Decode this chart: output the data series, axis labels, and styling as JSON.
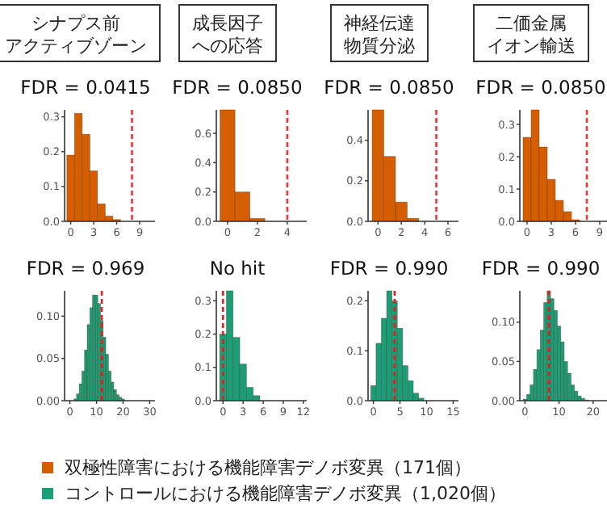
{
  "chart_data": [
    {
      "type": "histogram",
      "title": "シナプス前",
      "subtitle": "アクティブゾーン",
      "annotations": [
        "FDR = 0.0415"
      ],
      "bins": [
        -0.5,
        0.5,
        1.5,
        2.5,
        3.5,
        4.5,
        5.5,
        6.5
      ],
      "series": [
        {
          "color": "#d55e00",
          "values": [
            0.19,
            0.31,
            0.25,
            0.145,
            0.05,
            0.015,
            0.005
          ]
        }
      ],
      "xlim": [
        -0.8,
        11
      ],
      "xticks": [
        0,
        3,
        6,
        9
      ],
      "ylim": [
        0,
        0.32
      ],
      "yticks": [
        {
          "value": 0,
          "label": "0.0"
        },
        {
          "value": 0.1,
          "label": "0.1"
        },
        {
          "value": 0.2,
          "label": "0.2"
        },
        {
          "value": 0.3,
          "label": "0.3"
        }
      ],
      "ref_lines": [
        {
          "axis": "x",
          "value": 8,
          "color": "#ee3333",
          "line_style": "dashed"
        }
      ]
    },
    {
      "type": "histogram",
      "title": "成長因子",
      "subtitle": "への応答",
      "annotations": [
        "FDR = 0.0850"
      ],
      "bins": [
        -0.5,
        0.5,
        1.5,
        2.5
      ],
      "series": [
        {
          "color": "#d55e00",
          "values": [
            0.76,
            0.2,
            0.02
          ]
        }
      ],
      "xlim": [
        -0.75,
        5.3
      ],
      "xticks": [
        0,
        2,
        4
      ],
      "ylim": [
        0,
        0.76
      ],
      "yticks": [
        {
          "value": 0,
          "label": "0.0"
        },
        {
          "value": 0.2,
          "label": "0.2"
        },
        {
          "value": 0.4,
          "label": "0.4"
        },
        {
          "value": 0.6,
          "label": "0.6"
        }
      ],
      "ref_lines": [
        {
          "axis": "x",
          "value": 4,
          "color": "#ee3333",
          "line_style": "dashed"
        }
      ]
    },
    {
      "type": "histogram",
      "title": "神経伝達",
      "subtitle": "物質分泌",
      "annotations": [
        "FDR = 0.0850"
      ],
      "bins": [
        -0.5,
        0.5,
        1.5,
        2.5,
        3.5
      ],
      "series": [
        {
          "color": "#d55e00",
          "values": [
            0.55,
            0.32,
            0.095,
            0.015
          ]
        }
      ],
      "xlim": [
        -0.85,
        6.9
      ],
      "xticks": [
        0,
        2,
        4,
        6
      ],
      "ylim": [
        0,
        0.55
      ],
      "yticks": [
        {
          "value": 0,
          "label": "0.0"
        },
        {
          "value": 0.2,
          "label": "0.2"
        },
        {
          "value": 0.4,
          "label": "0.4"
        }
      ],
      "ref_lines": [
        {
          "axis": "x",
          "value": 5,
          "color": "#ee3333",
          "line_style": "dashed"
        }
      ]
    },
    {
      "type": "histogram",
      "title": "二価金属",
      "subtitle": "イオン輸送",
      "annotations": [
        "FDR = 0.0850"
      ],
      "bins": [
        -0.5,
        0.5,
        1.5,
        2.5,
        3.5,
        4.5,
        5.5,
        6.5
      ],
      "series": [
        {
          "color": "#d55e00",
          "values": [
            0.26,
            0.345,
            0.23,
            0.13,
            0.065,
            0.03,
            0.005
          ]
        }
      ],
      "xlim": [
        -0.9,
        10.3
      ],
      "xticks": [
        0,
        3,
        6,
        9
      ],
      "ylim": [
        0,
        0.345
      ],
      "yticks": [
        {
          "value": 0,
          "label": "0.0"
        },
        {
          "value": 0.1,
          "label": "0.1"
        },
        {
          "value": 0.2,
          "label": "0.2"
        },
        {
          "value": 0.3,
          "label": "0.3"
        }
      ],
      "ref_lines": [
        {
          "axis": "x",
          "value": 7.4,
          "color": "#ee3333",
          "line_style": "dashed"
        }
      ]
    },
    {
      "type": "histogram",
      "title": "FDR = 0.969",
      "bins": [
        1.5,
        2.5,
        3.5,
        4.5,
        5.5,
        6.5,
        7.5,
        8.5,
        9.5,
        10.5,
        11.5,
        12.5,
        13.5,
        14.5,
        15.5,
        16.5,
        17.5,
        18.5,
        19.5,
        20.5
      ],
      "series": [
        {
          "color": "#1a9e77",
          "values": [
            0.002,
            0.008,
            0.02,
            0.035,
            0.06,
            0.09,
            0.11,
            0.125,
            0.125,
            0.115,
            0.095,
            0.075,
            0.055,
            0.035,
            0.022,
            0.013,
            0.007,
            0.004,
            0.002
          ]
        }
      ],
      "xlim": [
        -2,
        32
      ],
      "xticks": [
        0,
        10,
        20,
        30
      ],
      "ylim": [
        0,
        0.13
      ],
      "yticks": [
        {
          "value": 0,
          "label": "0.00"
        },
        {
          "value": 0.05,
          "label": "0.05"
        },
        {
          "value": 0.1,
          "label": "0.10"
        }
      ],
      "ref_lines": [
        {
          "axis": "x",
          "value": 12,
          "color": "#dd2222",
          "line_style": "dashed"
        }
      ]
    },
    {
      "type": "histogram",
      "title": "No hit",
      "bins": [
        -0.5,
        0.5,
        1.5,
        2.5,
        3.5,
        4.5,
        5.5
      ],
      "series": [
        {
          "color": "#1a9e77",
          "values": [
            0.2,
            0.33,
            0.19,
            0.11,
            0.04,
            0.015
          ]
        }
      ],
      "xlim": [
        -1,
        12.5
      ],
      "xticks": [
        0,
        3,
        6,
        9,
        12
      ],
      "ylim": [
        0,
        0.33
      ],
      "yticks": [
        {
          "value": 0,
          "label": "0.0"
        },
        {
          "value": 0.1,
          "label": "0.1"
        },
        {
          "value": 0.2,
          "label": "0.2"
        },
        {
          "value": 0.3,
          "label": "0.3"
        }
      ],
      "ref_lines": [
        {
          "axis": "x",
          "value": 0,
          "color": "#dd2222",
          "line_style": "dashed"
        }
      ]
    },
    {
      "type": "histogram",
      "title": "FDR = 0.990",
      "bins": [
        -0.5,
        0.5,
        1.5,
        2.5,
        3.5,
        4.5,
        5.5,
        6.5,
        7.5,
        8.5,
        9.5
      ],
      "series": [
        {
          "color": "#1a9e77",
          "values": [
            0.03,
            0.115,
            0.165,
            0.22,
            0.2,
            0.145,
            0.07,
            0.04,
            0.015,
            0.005
          ]
        }
      ],
      "xlim": [
        -1,
        16
      ],
      "xticks": [
        0,
        5,
        10,
        15
      ],
      "ylim": [
        0,
        0.22
      ],
      "yticks": [
        {
          "value": 0,
          "label": "0.0"
        },
        {
          "value": 0.1,
          "label": "0.1"
        },
        {
          "value": 0.2,
          "label": "0.2"
        }
      ],
      "ref_lines": [
        {
          "axis": "x",
          "value": 4,
          "color": "#dd2222",
          "line_style": "dashed"
        }
      ]
    },
    {
      "type": "histogram",
      "title": "FDR = 0.990",
      "bins": [
        -0.5,
        0.5,
        1.5,
        2.5,
        3.5,
        4.5,
        5.5,
        6.5,
        7.5,
        8.5,
        9.5,
        10.5,
        11.5,
        12.5,
        13.5,
        14.5,
        15.5,
        16.5,
        17.5,
        18.5
      ],
      "series": [
        {
          "color": "#1a9e77",
          "values": [
            0.002,
            0.008,
            0.02,
            0.04,
            0.065,
            0.09,
            0.125,
            0.14,
            0.13,
            0.115,
            0.095,
            0.075,
            0.05,
            0.035,
            0.02,
            0.012,
            0.006,
            0.003,
            0.001
          ]
        }
      ],
      "xlim": [
        -1.5,
        25
      ],
      "xticks": [
        0,
        10,
        20
      ],
      "ylim": [
        0,
        0.14
      ],
      "yticks": [
        {
          "value": 0,
          "label": "0.00"
        },
        {
          "value": 0.05,
          "label": "0.05"
        },
        {
          "value": 0.1,
          "label": "0.10"
        }
      ],
      "ref_lines": [
        {
          "axis": "x",
          "value": 7,
          "color": "#dd2222",
          "line_style": "dashed"
        }
      ]
    },
    {
      "type": "other",
      "annotations": [
        "双極性障害における機能障害デノボ変異（171個）",
        "コントロールにおける機能障害デノボ変異（1,020個）"
      ],
      "colors": [
        "#d55e00",
        "#1a9e77"
      ]
    }
  ]
}
